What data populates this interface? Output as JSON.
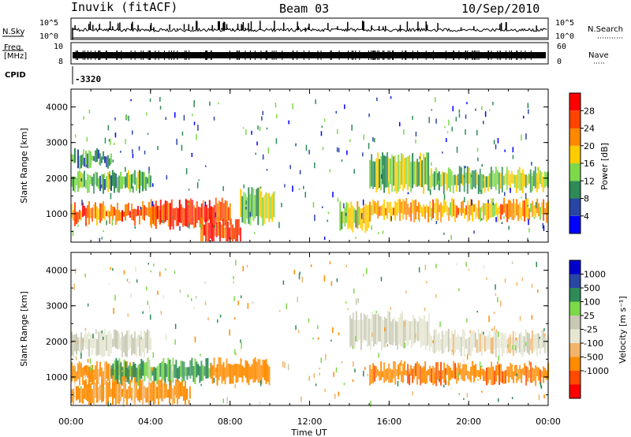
{
  "header": {
    "radar": "Inuvik (fitACF)",
    "beam": "Beam 03",
    "date": "10/Sep/2010"
  },
  "nsky_panel": {
    "left_label": "N.Sky",
    "right_label": "N.Search",
    "tick_top": "10^5",
    "tick_bottom": "10^0"
  },
  "freq_panel": {
    "left_label_1": "Freq.",
    "left_label_2": "[MHz]",
    "right_label": "Nave",
    "left_ticks": [
      "10",
      "8"
    ],
    "right_ticks": [
      "60",
      "0"
    ]
  },
  "cpid": {
    "label": "CPID",
    "value": "-3320"
  },
  "colors": {
    "power": [
      "#0000ff",
      "#2a46a5",
      "#2e8b57",
      "#7dd84a",
      "#ffcc00",
      "#ff8800",
      "#ff4400",
      "#ff0000"
    ],
    "velocity": [
      "#ff0000",
      "#ff4a00",
      "#ff8c00",
      "#f2b46a",
      "#e6e6d2",
      "#c8c8b4",
      "#7dd84a",
      "#2e8b57",
      "#2a46a5",
      "#0000cd"
    ]
  },
  "chart_data": [
    {
      "type": "heatmap",
      "name": "power",
      "ylabel": "Slant Range [km]",
      "yticks": [
        "1000",
        "2000",
        "3000",
        "4000"
      ],
      "colorbar_label": "Power [dB]",
      "colorbar_ticks": [
        "4",
        "8",
        "12",
        "16",
        "20",
        "24",
        "28"
      ],
      "colorbar_range": [
        0,
        32
      ],
      "ylim": [
        200,
        4500
      ],
      "xlim": [
        0,
        24
      ],
      "bands": [
        {
          "t0": 0,
          "t1": 4,
          "r0": 1700,
          "r1": 2100,
          "level": 12
        },
        {
          "t0": 0,
          "t1": 2,
          "r0": 2400,
          "r1": 2700,
          "level": 10
        },
        {
          "t0": 0,
          "t1": 4.5,
          "r0": 800,
          "r1": 1200,
          "level": 24
        },
        {
          "t0": 4,
          "t1": 8,
          "r0": 700,
          "r1": 1300,
          "level": 26
        },
        {
          "t0": 6.5,
          "t1": 8.5,
          "r0": 250,
          "r1": 750,
          "level": 28
        },
        {
          "t0": 8.5,
          "t1": 10.2,
          "r0": 800,
          "r1": 1600,
          "level": 14
        },
        {
          "t0": 13.5,
          "t1": 15,
          "r0": 600,
          "r1": 1200,
          "level": 16
        },
        {
          "t0": 15,
          "t1": 18,
          "r0": 1700,
          "r1": 2600,
          "level": 14
        },
        {
          "t0": 18,
          "t1": 24,
          "r0": 1700,
          "r1": 2200,
          "level": 14
        },
        {
          "t0": 15,
          "t1": 24,
          "r0": 900,
          "r1": 1300,
          "level": 20
        }
      ]
    },
    {
      "type": "heatmap",
      "name": "velocity",
      "xlabel": "Time UT",
      "xticks": [
        "00:00",
        "04:00",
        "08:00",
        "12:00",
        "16:00",
        "20:00",
        "00:00"
      ],
      "ylabel": "Slant Range [km]",
      "yticks": [
        "1000",
        "2000",
        "3000",
        "4000"
      ],
      "colorbar_label": "Velocity [m s⁻¹]",
      "colorbar_ticks": [
        "1000",
        "500",
        "100",
        "25",
        "-25",
        "-100",
        "-500",
        "-1000"
      ],
      "ylim": [
        200,
        4500
      ],
      "xlim": [
        0,
        24
      ],
      "bands": [
        {
          "t0": 0,
          "t1": 4,
          "r0": 1700,
          "r1": 2200,
          "level": 0
        },
        {
          "t0": 0,
          "t1": 3.5,
          "r0": 900,
          "r1": 1300,
          "level": -200
        },
        {
          "t0": 2,
          "t1": 7,
          "r0": 900,
          "r1": 1400,
          "level": 150
        },
        {
          "t0": 0,
          "t1": 6,
          "r0": 300,
          "r1": 800,
          "level": -150
        },
        {
          "t0": 7,
          "t1": 10,
          "r0": 900,
          "r1": 1400,
          "level": -300
        },
        {
          "t0": 14,
          "t1": 18,
          "r0": 1900,
          "r1": 2700,
          "level": 0
        },
        {
          "t0": 18,
          "t1": 24,
          "r0": 1700,
          "r1": 2200,
          "level": -10
        },
        {
          "t0": 15,
          "t1": 24,
          "r0": 900,
          "r1": 1300,
          "level": -400
        }
      ]
    }
  ]
}
